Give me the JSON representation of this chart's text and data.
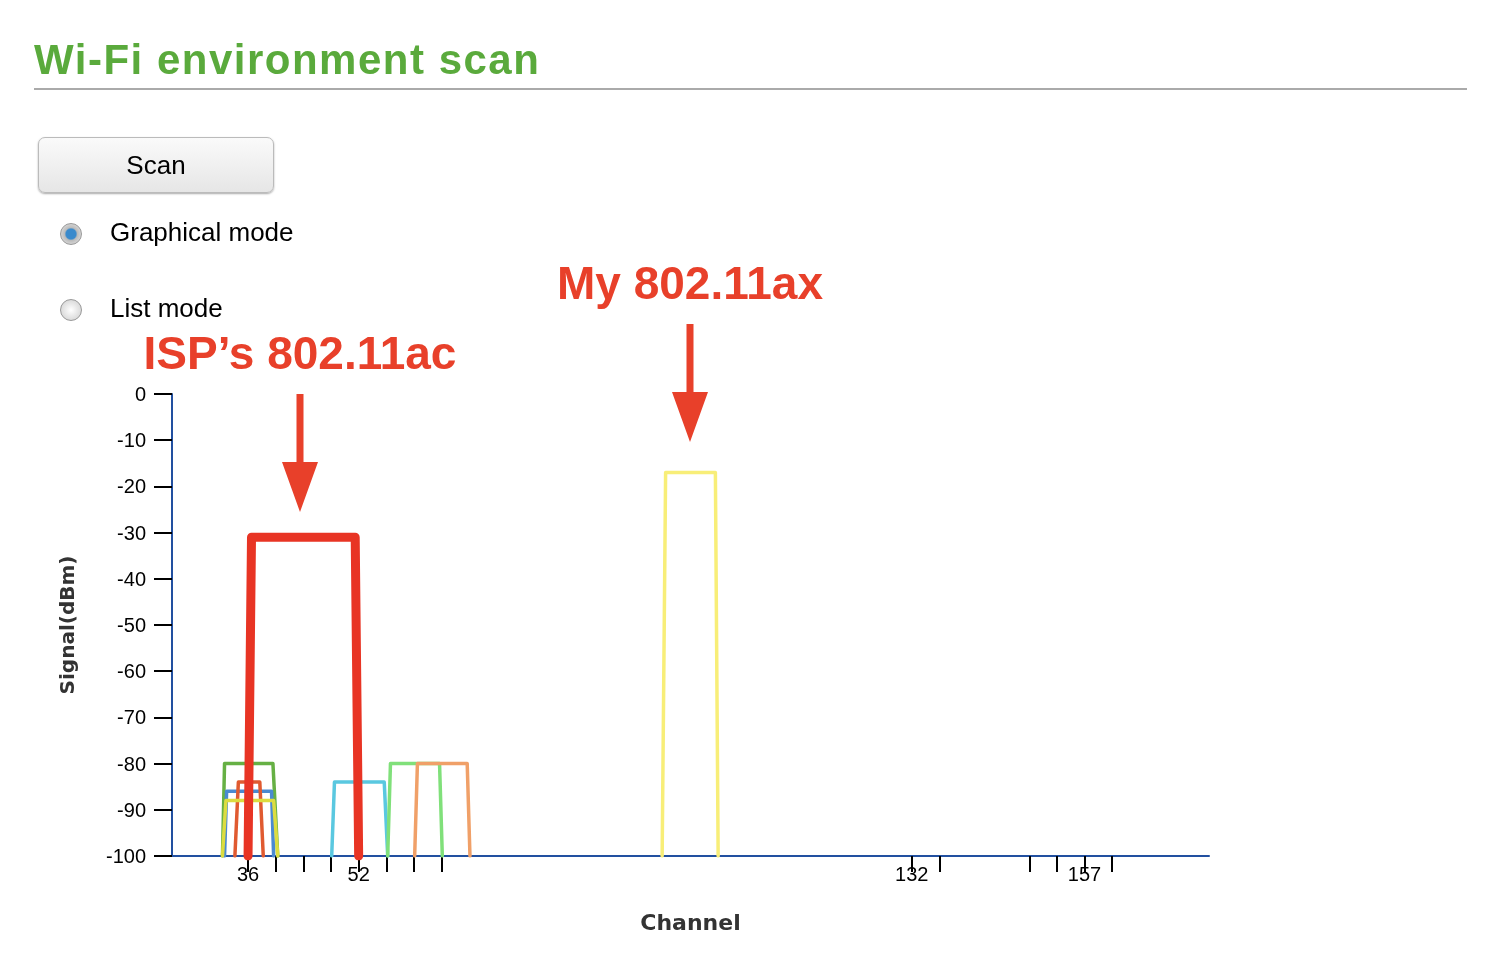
{
  "chart_data": {
    "type": "line",
    "title": "Wi-Fi environment scan",
    "xlabel": "Channel",
    "ylabel": "Signal(dBm)",
    "xlim": [
      25,
      175
    ],
    "xticks": [
      36,
      {
        "value": 40,
        "label": null
      },
      {
        "value": 44,
        "label": null
      },
      {
        "value": 48,
        "label": null
      },
      52,
      {
        "value": 56,
        "label": null
      },
      {
        "value": 60,
        "label": null
      },
      {
        "value": 64,
        "label": null
      },
      132,
      {
        "value": 136,
        "label": null
      },
      {
        "value": 149,
        "label": null
      },
      {
        "value": 153,
        "label": null
      },
      157,
      {
        "value": 161,
        "label": null
      }
    ],
    "ylim": [
      -100,
      0
    ],
    "yticks": [
      0,
      -10,
      -20,
      -30,
      -40,
      -50,
      -60,
      -70,
      -80,
      -90,
      -100
    ],
    "grid": false,
    "marker": "none",
    "line_style": "solid",
    "annotations": [
      "Scan",
      "Graphical mode",
      "List mode",
      "ISP’s 802.11ac",
      "My 802.11ax"
    ],
    "series": [
      {
        "color": "#66b044",
        "x": [
          32.3,
          32.6,
          39.6,
          40.3
        ],
        "values": [
          -100,
          -80,
          -80,
          -100
        ]
      },
      {
        "color": "#4a8ad0",
        "x": [
          32.6,
          32.9,
          39.4,
          39.7
        ],
        "values": [
          -100,
          -86,
          -86,
          -100
        ]
      },
      {
        "color": "#e05a30",
        "x": [
          34.1,
          34.6,
          37.7,
          38.2
        ],
        "values": [
          -100,
          -84,
          -84,
          -100
        ]
      },
      {
        "color": "#dcdc40",
        "x": [
          32.3,
          32.8,
          39.7,
          40.3
        ],
        "values": [
          -100,
          -88,
          -88,
          -100
        ]
      },
      {
        "color": "#5ac8e0",
        "x": [
          48.1,
          48.5,
          55.7,
          56.2
        ],
        "values": [
          -100,
          -84,
          -84,
          -100
        ]
      },
      {
        "color": "#80e07a",
        "x": [
          56.2,
          56.6,
          63.7,
          64.1
        ],
        "values": [
          -100,
          -80,
          -80,
          -100
        ]
      },
      {
        "color": "#f0a068",
        "x": [
          60.1,
          60.5,
          67.7,
          68.1
        ],
        "values": [
          -100,
          -80,
          -80,
          -100
        ]
      },
      {
        "color": "#f8ee78",
        "x": [
          95.9,
          96.4,
          103.6,
          104
        ],
        "values": [
          -100,
          -17,
          -17,
          -100
        ]
      },
      {
        "color": "#e83424",
        "x": [
          36,
          36.5,
          51.5,
          52
        ],
        "values": [
          -100,
          -31,
          -31,
          -100
        ]
      }
    ]
  }
}
